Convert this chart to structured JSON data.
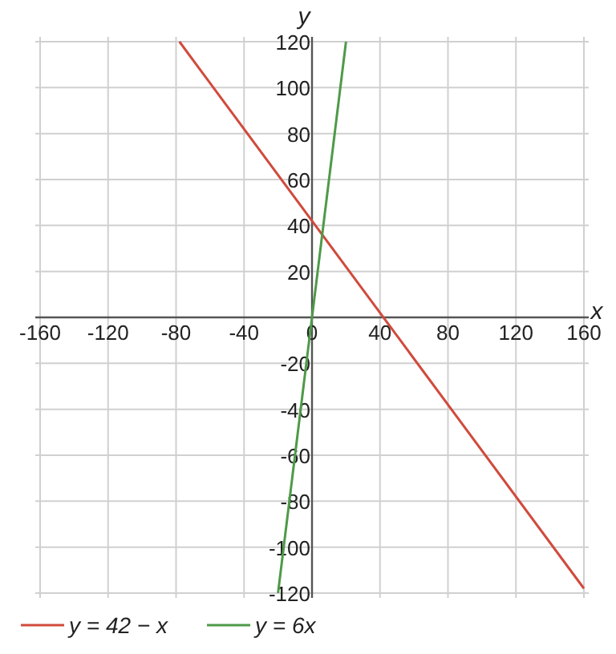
{
  "chart_data": {
    "type": "line",
    "xlabel": "x",
    "ylabel": "y",
    "xlim": [
      -160,
      160
    ],
    "ylim": [
      -120,
      120
    ],
    "xticks": [
      -160,
      -120,
      -80,
      -40,
      0,
      40,
      80,
      120,
      160
    ],
    "yticks": [
      -120,
      -100,
      -80,
      -60,
      -40,
      -20,
      20,
      40,
      60,
      80,
      100,
      120
    ],
    "grid": true,
    "legend": "bottom",
    "series": [
      {
        "name": "y = 42 − x",
        "color": "#d04a3c",
        "x": [
          -78,
          160
        ],
        "values": [
          120,
          -118
        ]
      },
      {
        "name": "y = 6x",
        "color": "#4e9a48",
        "x": [
          -20,
          20
        ],
        "values": [
          -120,
          120
        ]
      }
    ]
  }
}
